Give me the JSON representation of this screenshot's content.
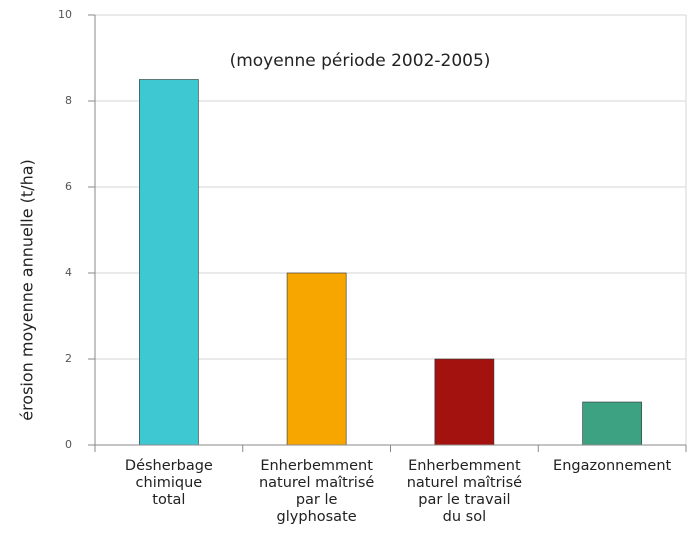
{
  "chart_data": {
    "type": "bar",
    "annotation": "(moyenne période 2002-2005)",
    "ylabel": "érosion moyenne annuelle (t/ha)",
    "categories": [
      [
        "Désherbage",
        "chimique",
        "total"
      ],
      [
        "Enherbemment",
        "naturel maîtrisé",
        "par le",
        "glyphosate"
      ],
      [
        "Enherbemment",
        "naturel maîtrisé",
        "par le travail",
        "du sol"
      ],
      [
        "Engazonnement"
      ]
    ],
    "values": [
      8.5,
      4,
      2,
      1
    ],
    "colors": [
      "#3ec9d2",
      "#f7a600",
      "#a3120f",
      "#3ca281"
    ],
    "ylim": [
      0,
      10
    ],
    "yticks": [
      0,
      2,
      4,
      6,
      8,
      10
    ],
    "grid": true
  }
}
